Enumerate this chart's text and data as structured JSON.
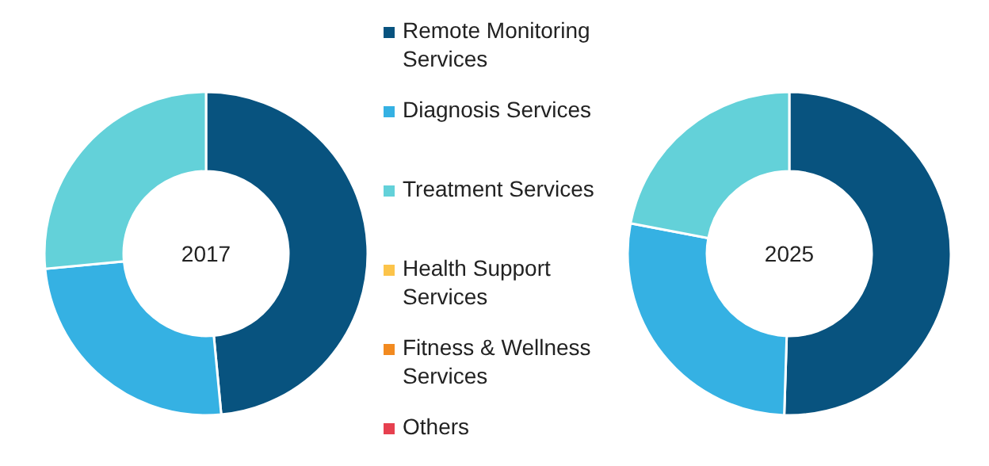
{
  "chart_data": [
    {
      "type": "donut",
      "title": "2017",
      "categories": [
        "Remote Monitoring Services",
        "Diagnosis Services",
        "Treatment Services",
        "Health Support Services",
        "Fitness & Wellness Services",
        "Others"
      ],
      "values": [
        48.5,
        25,
        26.5,
        0,
        0,
        0
      ],
      "colors": [
        "#08537f",
        "#35b1e3",
        "#63d1d9",
        "#fcc44a",
        "#f28a20",
        "#e6404f"
      ],
      "legend": "right"
    },
    {
      "type": "donut",
      "title": "2025",
      "categories": [
        null,
        null,
        null
      ],
      "values": [
        50.5,
        27.5,
        22
      ],
      "colors": [
        "#08537f",
        "#35b1e3",
        "#63d1d9"
      ]
    }
  ]
}
